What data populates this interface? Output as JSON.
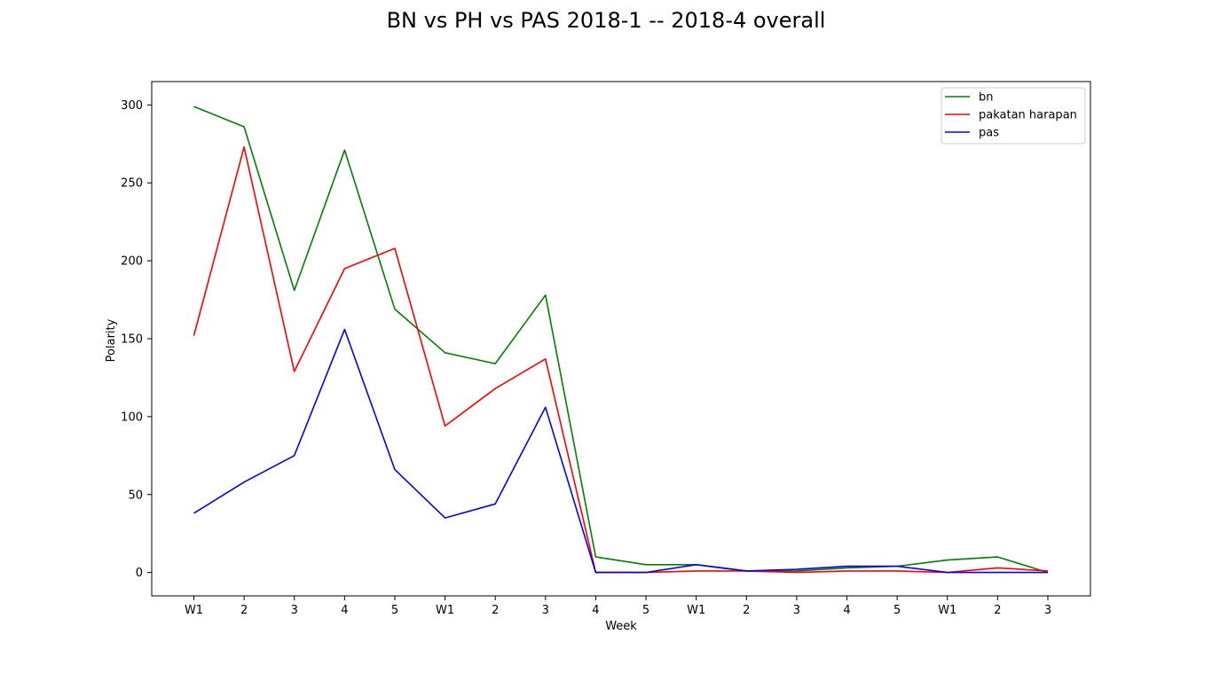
{
  "chart_data": {
    "type": "line",
    "title": "BN vs PH vs PAS 2018-1 -- 2018-4 overall",
    "xlabel": "Week",
    "ylabel": "Polarity",
    "categories": [
      "W1",
      "2",
      "3",
      "4",
      "5",
      "W1",
      "2",
      "3",
      "4",
      "5",
      "W1",
      "2",
      "3",
      "4",
      "5",
      "W1",
      "2",
      "3"
    ],
    "ylim": [
      -15,
      315
    ],
    "yticks": [
      0,
      50,
      100,
      150,
      200,
      250,
      300
    ],
    "grid": false,
    "legend_position": "top-right",
    "series": [
      {
        "name": "bn",
        "color": "#008000",
        "values": [
          299,
          286,
          181,
          271,
          169,
          141,
          134,
          178,
          10,
          5,
          5,
          1,
          1,
          3,
          4,
          8,
          10,
          0
        ]
      },
      {
        "name": "pakatan harapan",
        "color": "#ff0000",
        "values": [
          152,
          273,
          129,
          195,
          208,
          94,
          118,
          137,
          0,
          0,
          1,
          1,
          0,
          1,
          1,
          0,
          3,
          1
        ]
      },
      {
        "name": "pas",
        "color": "#0000ff",
        "values": [
          38,
          58,
          75,
          156,
          66,
          35,
          44,
          106,
          0,
          0,
          5,
          1,
          2,
          4,
          4,
          0,
          0,
          0
        ]
      }
    ]
  }
}
